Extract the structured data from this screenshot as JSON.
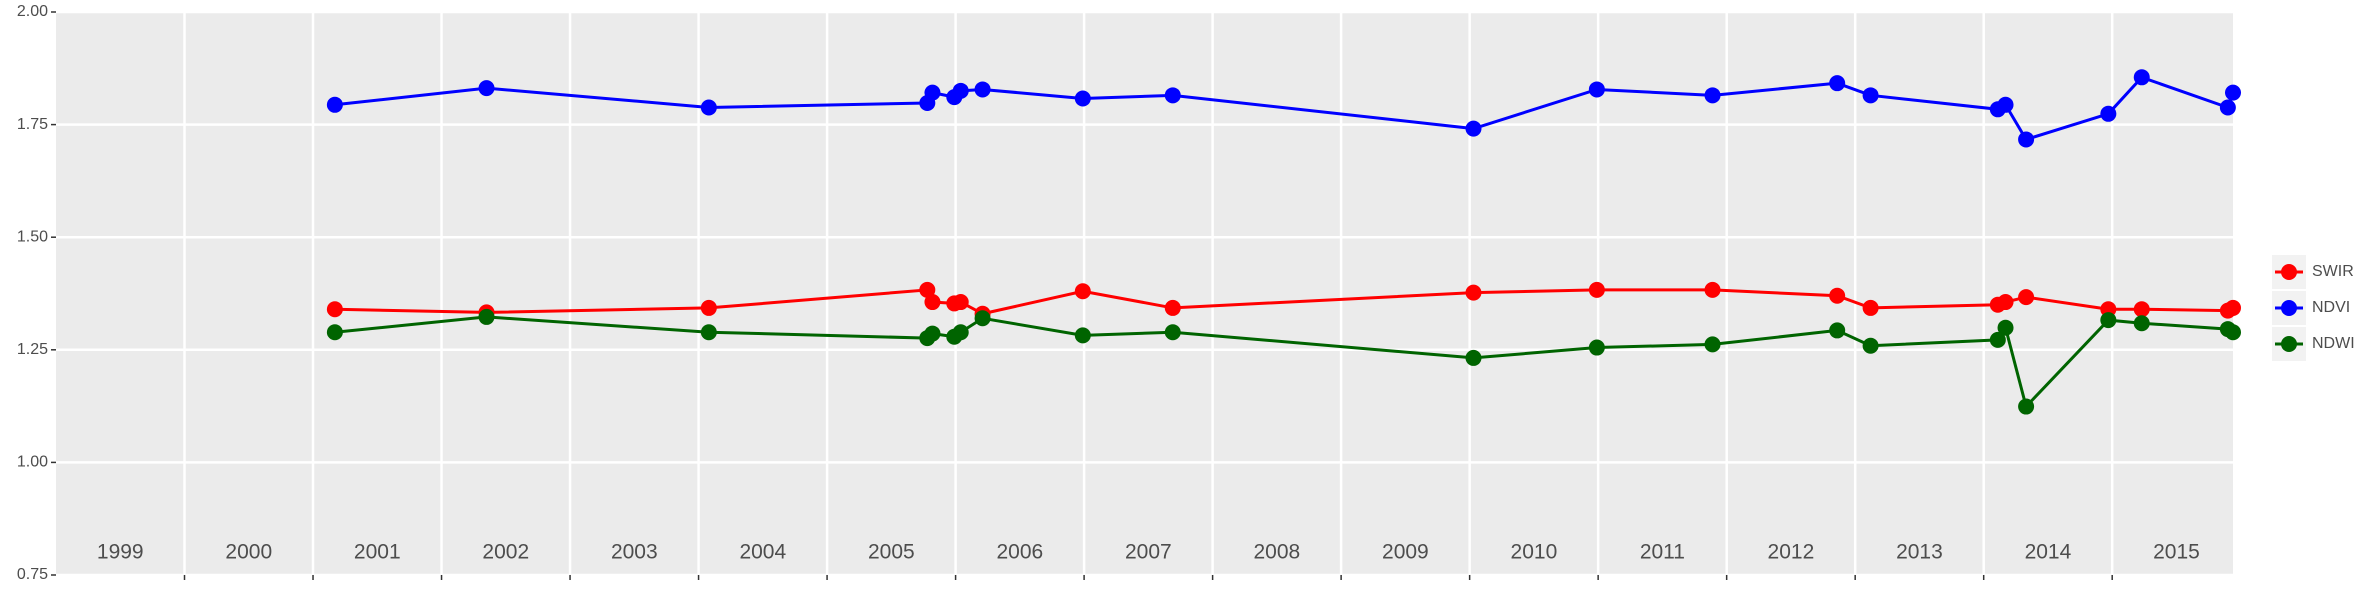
{
  "chart_data": {
    "type": "line",
    "x": [
      2001.17,
      2002.35,
      2004.08,
      2005.78,
      2005.82,
      2005.99,
      2006.04,
      2006.21,
      2006.99,
      2007.69,
      2010.03,
      2010.99,
      2011.89,
      2012.86,
      2013.12,
      2014.11,
      2014.17,
      2014.33,
      2014.97,
      2015.23,
      2015.9,
      2015.94
    ],
    "series": [
      {
        "name": "SWIR",
        "color": "#ff0000",
        "values": [
          1.34,
          1.333,
          1.343,
          1.383,
          1.356,
          1.353,
          1.356,
          1.33,
          1.38,
          1.343,
          1.377,
          1.383,
          1.383,
          1.37,
          1.343,
          1.35,
          1.356,
          1.367,
          1.34,
          1.34,
          1.337,
          1.343
        ]
      },
      {
        "name": "NDVI",
        "color": "#0000ff",
        "values": [
          1.794,
          1.831,
          1.788,
          1.798,
          1.821,
          1.811,
          1.825,
          1.828,
          1.808,
          1.815,
          1.741,
          1.828,
          1.815,
          1.842,
          1.815,
          1.784,
          1.794,
          1.717,
          1.774,
          1.855,
          1.788,
          1.821
        ]
      },
      {
        "name": "NDWI",
        "color": "#006400",
        "values": [
          1.289,
          1.323,
          1.289,
          1.276,
          1.286,
          1.279,
          1.289,
          1.32,
          1.282,
          1.289,
          1.232,
          1.255,
          1.262,
          1.293,
          1.259,
          1.272,
          1.299,
          1.124,
          1.316,
          1.309,
          1.296,
          1.289
        ]
      }
    ],
    "xlim": [
      1999,
      2015.94
    ],
    "xticks": [
      2000,
      2001,
      2002,
      2003,
      2004,
      2005,
      2006,
      2007,
      2008,
      2009,
      2010,
      2011,
      2012,
      2013,
      2014,
      2015
    ],
    "year_labels": [
      1999,
      2000,
      2001,
      2002,
      2003,
      2004,
      2005,
      2006,
      2007,
      2008,
      2009,
      2010,
      2011,
      2012,
      2013,
      2014,
      2015
    ],
    "ylim": [
      0.75,
      2.0
    ],
    "yticks": [
      0.75,
      {
        "value": 1.0,
        "label": "1.00"
      },
      1.25,
      {
        "value": 1.5,
        "label": "1.50"
      },
      1.75,
      {
        "value": 2.0,
        "label": "2.00"
      }
    ],
    "grid": true
  }
}
